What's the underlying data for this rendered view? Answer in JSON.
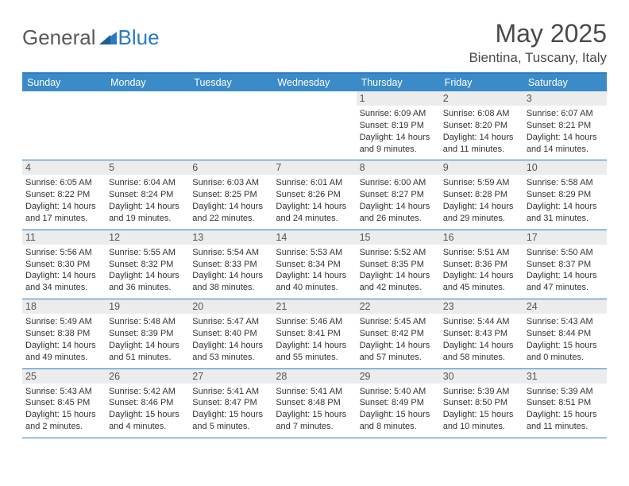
{
  "logo": {
    "text1": "General",
    "text2": "Blue"
  },
  "title": "May 2025",
  "subtitle": "Bientina, Tuscany, Italy",
  "colors": {
    "header_bar": "#3b8bc9",
    "border": "#2b7bbf",
    "daynum_bg": "#ececec",
    "text": "#333333",
    "title": "#4a4a4a"
  },
  "dow": [
    "Sunday",
    "Monday",
    "Tuesday",
    "Wednesday",
    "Thursday",
    "Friday",
    "Saturday"
  ],
  "weeks": [
    [
      null,
      null,
      null,
      null,
      {
        "n": "1",
        "sr": "Sunrise: 6:09 AM",
        "ss": "Sunset: 8:19 PM",
        "d1": "Daylight: 14 hours",
        "d2": "and 9 minutes."
      },
      {
        "n": "2",
        "sr": "Sunrise: 6:08 AM",
        "ss": "Sunset: 8:20 PM",
        "d1": "Daylight: 14 hours",
        "d2": "and 11 minutes."
      },
      {
        "n": "3",
        "sr": "Sunrise: 6:07 AM",
        "ss": "Sunset: 8:21 PM",
        "d1": "Daylight: 14 hours",
        "d2": "and 14 minutes."
      }
    ],
    [
      {
        "n": "4",
        "sr": "Sunrise: 6:05 AM",
        "ss": "Sunset: 8:22 PM",
        "d1": "Daylight: 14 hours",
        "d2": "and 17 minutes."
      },
      {
        "n": "5",
        "sr": "Sunrise: 6:04 AM",
        "ss": "Sunset: 8:24 PM",
        "d1": "Daylight: 14 hours",
        "d2": "and 19 minutes."
      },
      {
        "n": "6",
        "sr": "Sunrise: 6:03 AM",
        "ss": "Sunset: 8:25 PM",
        "d1": "Daylight: 14 hours",
        "d2": "and 22 minutes."
      },
      {
        "n": "7",
        "sr": "Sunrise: 6:01 AM",
        "ss": "Sunset: 8:26 PM",
        "d1": "Daylight: 14 hours",
        "d2": "and 24 minutes."
      },
      {
        "n": "8",
        "sr": "Sunrise: 6:00 AM",
        "ss": "Sunset: 8:27 PM",
        "d1": "Daylight: 14 hours",
        "d2": "and 26 minutes."
      },
      {
        "n": "9",
        "sr": "Sunrise: 5:59 AM",
        "ss": "Sunset: 8:28 PM",
        "d1": "Daylight: 14 hours",
        "d2": "and 29 minutes."
      },
      {
        "n": "10",
        "sr": "Sunrise: 5:58 AM",
        "ss": "Sunset: 8:29 PM",
        "d1": "Daylight: 14 hours",
        "d2": "and 31 minutes."
      }
    ],
    [
      {
        "n": "11",
        "sr": "Sunrise: 5:56 AM",
        "ss": "Sunset: 8:30 PM",
        "d1": "Daylight: 14 hours",
        "d2": "and 34 minutes."
      },
      {
        "n": "12",
        "sr": "Sunrise: 5:55 AM",
        "ss": "Sunset: 8:32 PM",
        "d1": "Daylight: 14 hours",
        "d2": "and 36 minutes."
      },
      {
        "n": "13",
        "sr": "Sunrise: 5:54 AM",
        "ss": "Sunset: 8:33 PM",
        "d1": "Daylight: 14 hours",
        "d2": "and 38 minutes."
      },
      {
        "n": "14",
        "sr": "Sunrise: 5:53 AM",
        "ss": "Sunset: 8:34 PM",
        "d1": "Daylight: 14 hours",
        "d2": "and 40 minutes."
      },
      {
        "n": "15",
        "sr": "Sunrise: 5:52 AM",
        "ss": "Sunset: 8:35 PM",
        "d1": "Daylight: 14 hours",
        "d2": "and 42 minutes."
      },
      {
        "n": "16",
        "sr": "Sunrise: 5:51 AM",
        "ss": "Sunset: 8:36 PM",
        "d1": "Daylight: 14 hours",
        "d2": "and 45 minutes."
      },
      {
        "n": "17",
        "sr": "Sunrise: 5:50 AM",
        "ss": "Sunset: 8:37 PM",
        "d1": "Daylight: 14 hours",
        "d2": "and 47 minutes."
      }
    ],
    [
      {
        "n": "18",
        "sr": "Sunrise: 5:49 AM",
        "ss": "Sunset: 8:38 PM",
        "d1": "Daylight: 14 hours",
        "d2": "and 49 minutes."
      },
      {
        "n": "19",
        "sr": "Sunrise: 5:48 AM",
        "ss": "Sunset: 8:39 PM",
        "d1": "Daylight: 14 hours",
        "d2": "and 51 minutes."
      },
      {
        "n": "20",
        "sr": "Sunrise: 5:47 AM",
        "ss": "Sunset: 8:40 PM",
        "d1": "Daylight: 14 hours",
        "d2": "and 53 minutes."
      },
      {
        "n": "21",
        "sr": "Sunrise: 5:46 AM",
        "ss": "Sunset: 8:41 PM",
        "d1": "Daylight: 14 hours",
        "d2": "and 55 minutes."
      },
      {
        "n": "22",
        "sr": "Sunrise: 5:45 AM",
        "ss": "Sunset: 8:42 PM",
        "d1": "Daylight: 14 hours",
        "d2": "and 57 minutes."
      },
      {
        "n": "23",
        "sr": "Sunrise: 5:44 AM",
        "ss": "Sunset: 8:43 PM",
        "d1": "Daylight: 14 hours",
        "d2": "and 58 minutes."
      },
      {
        "n": "24",
        "sr": "Sunrise: 5:43 AM",
        "ss": "Sunset: 8:44 PM",
        "d1": "Daylight: 15 hours",
        "d2": "and 0 minutes."
      }
    ],
    [
      {
        "n": "25",
        "sr": "Sunrise: 5:43 AM",
        "ss": "Sunset: 8:45 PM",
        "d1": "Daylight: 15 hours",
        "d2": "and 2 minutes."
      },
      {
        "n": "26",
        "sr": "Sunrise: 5:42 AM",
        "ss": "Sunset: 8:46 PM",
        "d1": "Daylight: 15 hours",
        "d2": "and 4 minutes."
      },
      {
        "n": "27",
        "sr": "Sunrise: 5:41 AM",
        "ss": "Sunset: 8:47 PM",
        "d1": "Daylight: 15 hours",
        "d2": "and 5 minutes."
      },
      {
        "n": "28",
        "sr": "Sunrise: 5:41 AM",
        "ss": "Sunset: 8:48 PM",
        "d1": "Daylight: 15 hours",
        "d2": "and 7 minutes."
      },
      {
        "n": "29",
        "sr": "Sunrise: 5:40 AM",
        "ss": "Sunset: 8:49 PM",
        "d1": "Daylight: 15 hours",
        "d2": "and 8 minutes."
      },
      {
        "n": "30",
        "sr": "Sunrise: 5:39 AM",
        "ss": "Sunset: 8:50 PM",
        "d1": "Daylight: 15 hours",
        "d2": "and 10 minutes."
      },
      {
        "n": "31",
        "sr": "Sunrise: 5:39 AM",
        "ss": "Sunset: 8:51 PM",
        "d1": "Daylight: 15 hours",
        "d2": "and 11 minutes."
      }
    ]
  ]
}
